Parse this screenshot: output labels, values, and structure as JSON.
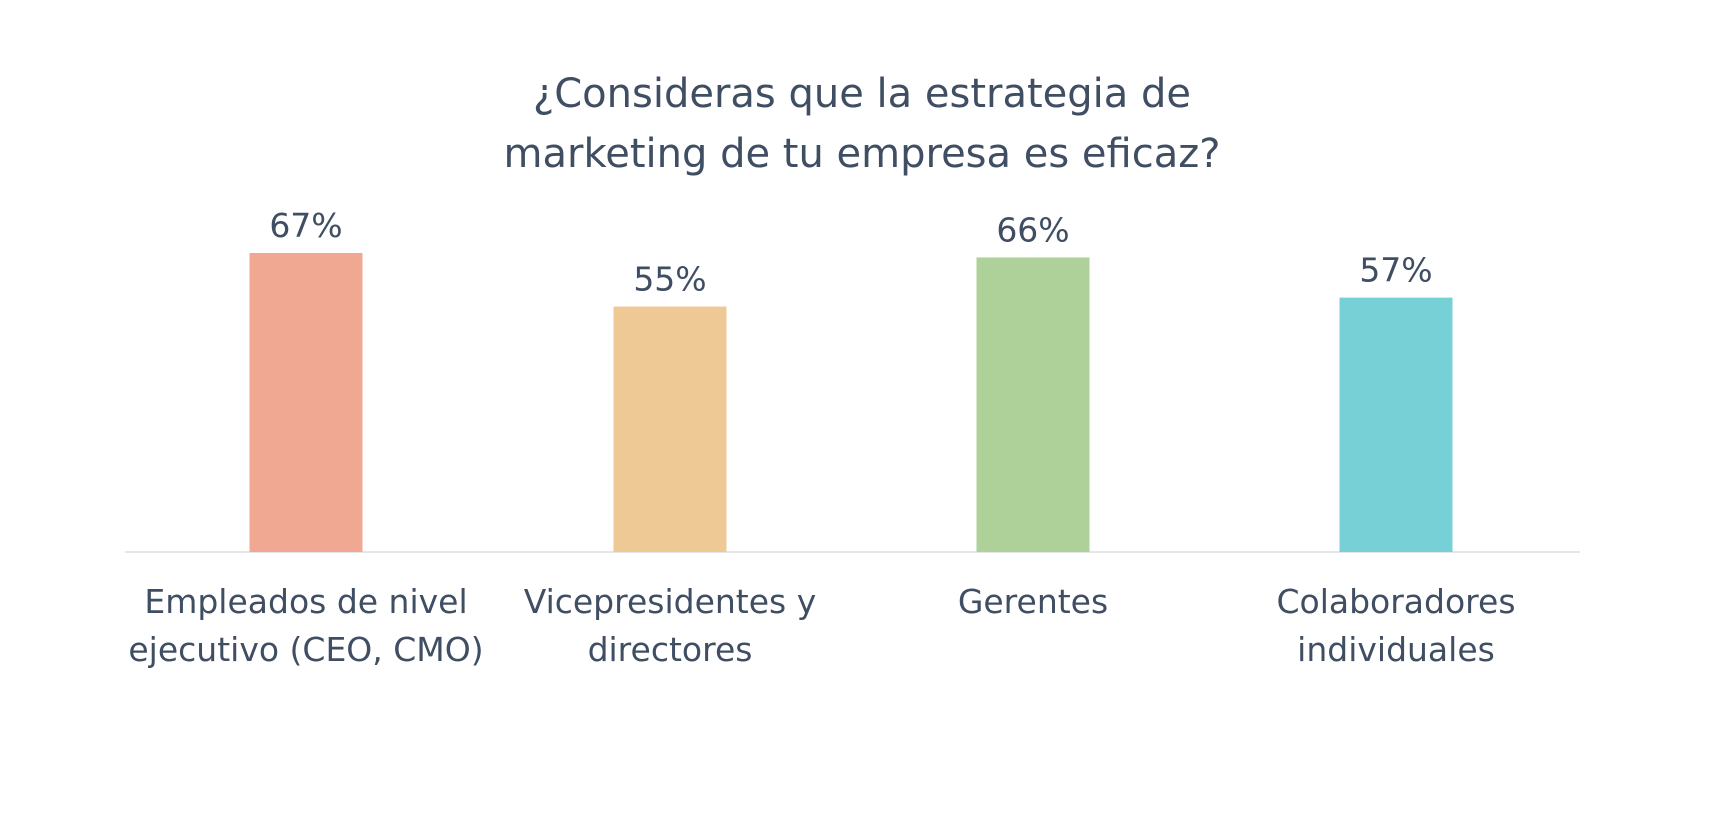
{
  "chart_data": {
    "type": "bar",
    "title_lines": [
      "¿Consideras que la estrategia de",
      "marketing de tu empresa es eficaz?"
    ],
    "categories": [
      [
        "Empleados de nivel",
        "ejecutivo (CEO, CMO)"
      ],
      [
        "Vicepresidentes y",
        "directores"
      ],
      [
        "Gerentes"
      ],
      [
        "Colaboradores",
        "individuales"
      ]
    ],
    "values": [
      67,
      55,
      66,
      57
    ],
    "value_labels": [
      "67%",
      "55%",
      "66%",
      "57%"
    ],
    "colors": [
      "#f1a892",
      "#eec996",
      "#aed099",
      "#77d0d6"
    ],
    "ylim": [
      0,
      67
    ],
    "grid": false,
    "legend": "none",
    "xlabel": "",
    "ylabel": ""
  }
}
